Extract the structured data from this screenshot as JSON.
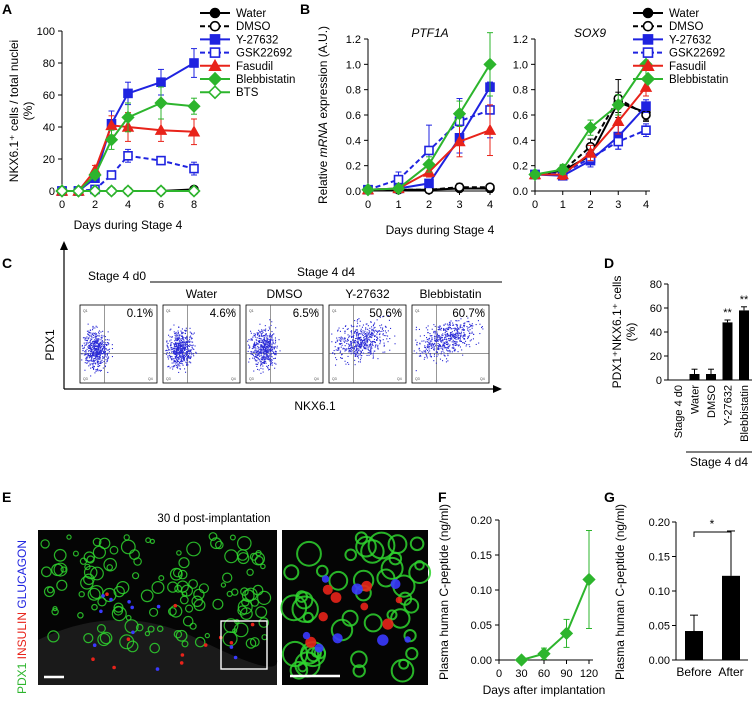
{
  "panel_labels": {
    "a": "A",
    "b": "B",
    "c": "C",
    "d": "D",
    "e": "E",
    "f": "F",
    "g": "G"
  },
  "colors": {
    "black": "#000000",
    "blue": "#1f23e0",
    "red": "#e8231a",
    "green": "#2db52d",
    "flow": "#2a2ad6",
    "tissue_green": "#2fd42f"
  },
  "chart_data": [
    {
      "id": "A",
      "type": "line",
      "xlabel": "Days during Stage 4",
      "ylabel": "NKX6.1⁺ cells / total nuclei (%)",
      "ylabel_lines": [
        "NKX6.1⁺ cells / total nuclei",
        "(%)"
      ],
      "x_ticks": [
        0,
        2,
        4,
        6,
        8
      ],
      "y_ticks": [
        0,
        20,
        40,
        60,
        80,
        100
      ],
      "xlim": [
        0,
        8
      ],
      "ylim": [
        0,
        100
      ],
      "legend": [
        "Water",
        "DMSO",
        "Y-27632",
        "GSK22692",
        "Fasudil",
        "Blebbistatin",
        "BTS"
      ],
      "series": [
        {
          "name": "Water",
          "color": "#000000",
          "marker": "circle",
          "fill": true,
          "dash": false,
          "x": [
            0,
            1,
            2,
            3,
            4,
            6,
            8
          ],
          "y": [
            0,
            0,
            0,
            0,
            0,
            0,
            1
          ],
          "err": [
            0,
            0,
            0,
            0,
            0,
            0,
            0
          ]
        },
        {
          "name": "DMSO",
          "color": "#000000",
          "marker": "circle",
          "fill": false,
          "dash": true,
          "x": [
            0,
            1,
            2,
            3,
            4,
            6,
            8
          ],
          "y": [
            0,
            0,
            0,
            0,
            0,
            0,
            0
          ],
          "err": [
            0,
            0,
            0,
            0,
            0,
            0,
            0
          ]
        },
        {
          "name": "Y-27632",
          "color": "#1f23e0",
          "marker": "square",
          "fill": true,
          "dash": false,
          "x": [
            0,
            1,
            2,
            3,
            4,
            6,
            8
          ],
          "y": [
            0,
            0,
            8,
            42,
            61,
            68,
            80
          ],
          "err": [
            0,
            0,
            2,
            8,
            7,
            8,
            9
          ]
        },
        {
          "name": "GSK22692",
          "color": "#1f23e0",
          "marker": "square",
          "fill": false,
          "dash": true,
          "x": [
            0,
            1,
            2,
            3,
            4,
            6,
            8
          ],
          "y": [
            0,
            0,
            1,
            10,
            22,
            19,
            14
          ],
          "err": [
            0,
            0,
            0,
            2,
            4,
            2,
            4
          ]
        },
        {
          "name": "Fasudil",
          "color": "#e8231a",
          "marker": "triangle",
          "fill": true,
          "dash": false,
          "x": [
            0,
            1,
            2,
            3,
            4,
            6,
            8
          ],
          "y": [
            0,
            0,
            13,
            41,
            40,
            38,
            37
          ],
          "err": [
            0,
            0,
            3,
            6,
            9,
            7,
            8
          ]
        },
        {
          "name": "Blebbistatin",
          "color": "#2db52d",
          "marker": "diamond",
          "fill": true,
          "dash": false,
          "x": [
            0,
            1,
            2,
            3,
            4,
            6,
            8
          ],
          "y": [
            0,
            0,
            10,
            32,
            46,
            55,
            53
          ],
          "err": [
            0,
            0,
            2,
            6,
            9,
            10,
            5
          ]
        },
        {
          "name": "BTS",
          "color": "#2db52d",
          "marker": "diamond",
          "fill": false,
          "dash": false,
          "x": [
            0,
            1,
            2,
            3,
            4,
            6,
            8
          ],
          "y": [
            0,
            0,
            0,
            0,
            0,
            0,
            0
          ],
          "err": [
            0,
            0,
            0,
            0,
            0,
            0,
            0
          ]
        }
      ]
    },
    {
      "id": "B1",
      "type": "line",
      "title": "PTF1A",
      "ylabel_parts": [
        "Relative ",
        "mRNA",
        " expression (A.U.)"
      ],
      "x_ticks": [
        0,
        1,
        2,
        3,
        4
      ],
      "y_ticks": [
        0,
        0.2,
        0.4,
        0.6,
        0.8,
        1.0,
        1.2
      ],
      "ytick_labels": [
        "0.0",
        "0.2",
        "0.4",
        "0.6",
        "0.8",
        "1.0",
        "1.2"
      ],
      "xlim": [
        0,
        4
      ],
      "ylim": [
        0,
        1.2
      ],
      "series": [
        {
          "name": "Water",
          "color": "#000000",
          "marker": "circle",
          "fill": true,
          "dash": false,
          "x": [
            0,
            1,
            2,
            3,
            4
          ],
          "y": [
            0.01,
            0.01,
            0.01,
            0.02,
            0.02
          ],
          "err": [
            0,
            0,
            0.01,
            0.02,
            0.03
          ]
        },
        {
          "name": "DMSO",
          "color": "#000000",
          "marker": "circle",
          "fill": false,
          "dash": true,
          "x": [
            0,
            1,
            2,
            3,
            4
          ],
          "y": [
            0.01,
            0.01,
            0.01,
            0.03,
            0.03
          ],
          "err": [
            0,
            0,
            0.01,
            0.03,
            0.02
          ]
        },
        {
          "name": "Y-27632",
          "color": "#1f23e0",
          "marker": "square",
          "fill": true,
          "dash": false,
          "x": [
            0,
            1,
            2,
            3,
            4
          ],
          "y": [
            0.01,
            0.02,
            0.06,
            0.42,
            0.82
          ],
          "err": [
            0,
            0.01,
            0.03,
            0.12,
            0.2
          ]
        },
        {
          "name": "GSK22692",
          "color": "#1f23e0",
          "marker": "square",
          "fill": false,
          "dash": true,
          "x": [
            0,
            1,
            2,
            3,
            4
          ],
          "y": [
            0.01,
            0.09,
            0.32,
            0.55,
            0.64
          ],
          "err": [
            0,
            0.06,
            0.2,
            0.18,
            0.22
          ]
        },
        {
          "name": "Fasudil",
          "color": "#e8231a",
          "marker": "triangle",
          "fill": true,
          "dash": false,
          "x": [
            0,
            1,
            2,
            3,
            4
          ],
          "y": [
            0.01,
            0.02,
            0.15,
            0.39,
            0.48
          ],
          "err": [
            0,
            0.01,
            0.04,
            0.12,
            0.2
          ]
        },
        {
          "name": "Blebbistatin",
          "color": "#2db52d",
          "marker": "diamond",
          "fill": true,
          "dash": false,
          "x": [
            0,
            1,
            2,
            3,
            4
          ],
          "y": [
            0.01,
            0.02,
            0.21,
            0.61,
            1.0
          ],
          "err": [
            0,
            0.01,
            0.06,
            0.1,
            0.25
          ]
        }
      ]
    },
    {
      "id": "B2",
      "type": "line",
      "title": "SOX9",
      "xlabel": "Days during Stage 4",
      "x_ticks": [
        0,
        1,
        2,
        3,
        4
      ],
      "y_ticks": [
        0,
        0.2,
        0.4,
        0.6,
        0.8,
        1.0,
        1.2
      ],
      "ytick_labels": [
        "0.0",
        "0.2",
        "0.4",
        "0.6",
        "0.8",
        "1.0",
        "1.2"
      ],
      "xlim": [
        0,
        4
      ],
      "ylim": [
        0,
        1.2
      ],
      "legend": [
        "Water",
        "DMSO",
        "Y-27632",
        "GSK22692",
        "Fasudil",
        "Blebbistatin"
      ],
      "series": [
        {
          "name": "Water",
          "color": "#000000",
          "marker": "circle",
          "fill": true,
          "dash": false,
          "x": [
            0,
            1,
            2,
            3,
            4
          ],
          "y": [
            0.13,
            0.16,
            0.28,
            0.7,
            0.62
          ],
          "err": [
            0.02,
            0.04,
            0.06,
            0.08,
            0.06
          ]
        },
        {
          "name": "DMSO",
          "color": "#000000",
          "marker": "circle",
          "fill": false,
          "dash": true,
          "x": [
            0,
            1,
            2,
            3,
            4
          ],
          "y": [
            0.13,
            0.16,
            0.35,
            0.73,
            0.6
          ],
          "err": [
            0.02,
            0.04,
            0.06,
            0.15,
            0.05
          ]
        },
        {
          "name": "Y-27632",
          "color": "#1f23e0",
          "marker": "square",
          "fill": true,
          "dash": false,
          "x": [
            0,
            1,
            2,
            3,
            4
          ],
          "y": [
            0.13,
            0.12,
            0.24,
            0.43,
            0.67
          ],
          "err": [
            0.02,
            0.03,
            0.05,
            0.1,
            0.05
          ]
        },
        {
          "name": "GSK22692",
          "color": "#1f23e0",
          "marker": "square",
          "fill": false,
          "dash": true,
          "x": [
            0,
            1,
            2,
            3,
            4
          ],
          "y": [
            0.13,
            0.14,
            0.26,
            0.39,
            0.48
          ],
          "err": [
            0.02,
            0.03,
            0.05,
            0.06,
            0.05
          ]
        },
        {
          "name": "Fasudil",
          "color": "#e8231a",
          "marker": "triangle",
          "fill": true,
          "dash": false,
          "x": [
            0,
            1,
            2,
            3,
            4
          ],
          "y": [
            0.13,
            0.13,
            0.3,
            0.55,
            0.82
          ],
          "err": [
            0.02,
            0.04,
            0.06,
            0.1,
            0.07
          ]
        },
        {
          "name": "Blebbistatin",
          "color": "#2db52d",
          "marker": "diamond",
          "fill": true,
          "dash": false,
          "x": [
            0,
            1,
            2,
            3,
            4
          ],
          "y": [
            0.13,
            0.17,
            0.5,
            0.68,
            1.0
          ],
          "err": [
            0.02,
            0.04,
            0.06,
            0.08,
            0.12
          ]
        }
      ]
    },
    {
      "id": "D",
      "type": "bar",
      "ylabel_lines": [
        "PDX1⁺NKX6.1⁺ cells",
        "(%)"
      ],
      "categories": [
        "Stage 4 d0",
        "Water",
        "DMSO",
        "Y-27632",
        "Blebbistatin"
      ],
      "values": [
        0,
        5,
        5,
        48,
        58
      ],
      "err": [
        0,
        4,
        4,
        2,
        3
      ],
      "annotations": [
        "",
        "",
        "",
        "**",
        "**"
      ],
      "group_label": "Stage 4 d4",
      "y_ticks": [
        0,
        20,
        40,
        60,
        80
      ],
      "ylim": [
        0,
        80
      ]
    },
    {
      "id": "F",
      "type": "line",
      "xlabel": "Days after implantation",
      "ylabel": "Plasma human C-peptide (ng/ml)",
      "x_ticks": [
        0,
        30,
        60,
        90,
        120
      ],
      "y_ticks": [
        0,
        0.05,
        0.1,
        0.15,
        0.2
      ],
      "ytick_labels": [
        "0.00",
        "0.05",
        "0.10",
        "0.15",
        "0.20"
      ],
      "xlim": [
        0,
        120
      ],
      "ylim": [
        0,
        0.2
      ],
      "series": [
        {
          "name": "",
          "color": "#2db52d",
          "marker": "diamond",
          "fill": true,
          "dash": false,
          "x": [
            30,
            60,
            90,
            120
          ],
          "y": [
            0,
            0.009,
            0.038,
            0.115
          ],
          "err": [
            0,
            0.008,
            0.02,
            0.07
          ]
        }
      ]
    },
    {
      "id": "G",
      "type": "bar",
      "ylabel": "Plasma human C-peptide (ng/ml)",
      "categories": [
        "Before",
        "After"
      ],
      "values": [
        0.042,
        0.122
      ],
      "err": [
        0.023,
        0.065
      ],
      "significance": "*",
      "y_ticks": [
        0,
        0.05,
        0.1,
        0.15,
        0.2
      ],
      "ytick_labels": [
        "0.00",
        "0.05",
        "0.10",
        "0.15",
        "0.20"
      ],
      "ylim": [
        0,
        0.2
      ]
    }
  ],
  "flow": {
    "ylabel": "PDX1",
    "xlabel": "NKX6.1",
    "header_d0": "Stage 4 d0",
    "header_d4": "Stage 4 d4",
    "plots": [
      {
        "label": "",
        "pct": "0.1%",
        "level": 0.1
      },
      {
        "label": "Water",
        "pct": "4.6%",
        "level": 4.6
      },
      {
        "label": "DMSO",
        "pct": "6.5%",
        "level": 6.5
      },
      {
        "label": "Y-27632",
        "pct": "50.6%",
        "level": 50.6
      },
      {
        "label": "Blebbistatin",
        "pct": "60.7%",
        "level": 60.7
      }
    ],
    "quadrants": [
      "Q1",
      "Q2",
      "Q3",
      "Q4"
    ]
  },
  "panelE": {
    "title": "30 d post-implantation",
    "stain": [
      {
        "text": "PDX1",
        "color": "#2db52d"
      },
      {
        "text": " INSULIN",
        "color": "#e8231a"
      },
      {
        "text": " GLUCAGON",
        "color": "#1f23e0"
      }
    ]
  }
}
